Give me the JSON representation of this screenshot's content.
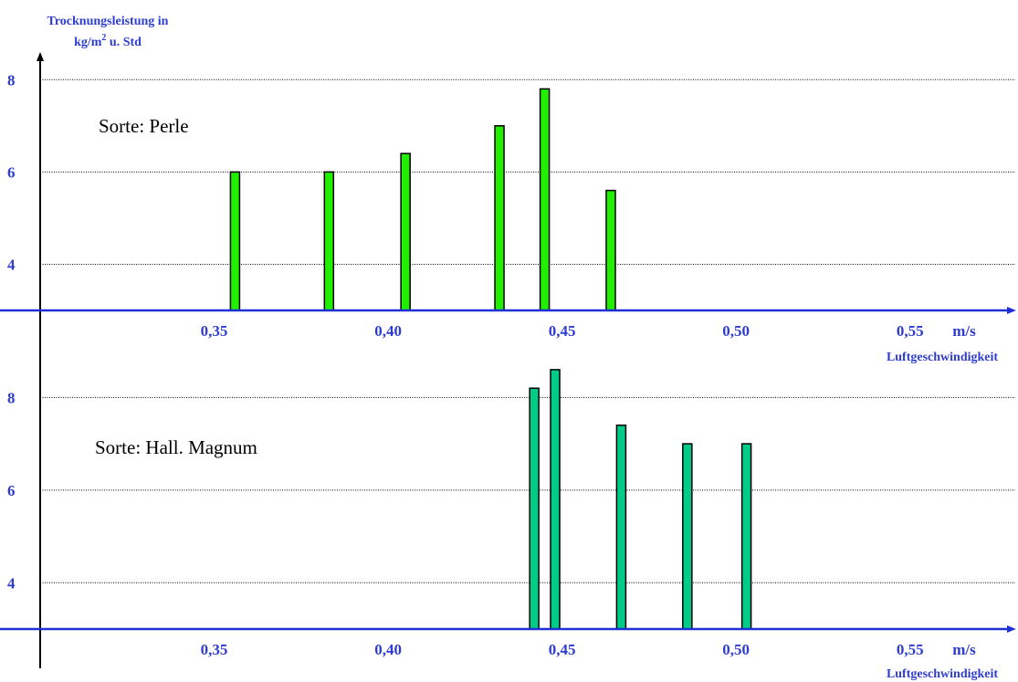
{
  "chart_data": {
    "type": "bar",
    "title_line1": "Trocknungsleistung in",
    "title_line2_pre": "kg/m",
    "title_line2_sup": "2",
    "title_line2_post": " u. Std",
    "colors": {
      "axis": "#1f30d6",
      "label": "#2e3cd0",
      "panel1_bar": "#22ee00",
      "panel2_bar": "#00cc88"
    },
    "panels": [
      {
        "label": "Sorte: Perle",
        "x_ticks": [
          "0,35",
          "0,40",
          "0,45",
          "0,50",
          "0,55"
        ],
        "x_tick_values": [
          0.35,
          0.4,
          0.45,
          0.5,
          0.55
        ],
        "x_unit": "m/s",
        "xlabel": "Luftgeschwindigkeit",
        "y_ticks": [
          "4",
          "6",
          "8"
        ],
        "y_tick_values": [
          4,
          6,
          8
        ],
        "ylim": [
          3,
          8.5
        ],
        "xlim": [
          0.3,
          0.575
        ],
        "points": [
          {
            "x": 0.356,
            "y": 6.0
          },
          {
            "x": 0.383,
            "y": 6.0
          },
          {
            "x": 0.405,
            "y": 6.4
          },
          {
            "x": 0.432,
            "y": 7.0
          },
          {
            "x": 0.445,
            "y": 7.8
          },
          {
            "x": 0.464,
            "y": 5.6
          }
        ]
      },
      {
        "label": "Sorte: Hall. Magnum",
        "x_ticks": [
          "0,35",
          "0,40",
          "0,45",
          "0,50",
          "0,55"
        ],
        "x_tick_values": [
          0.35,
          0.4,
          0.45,
          0.5,
          0.55
        ],
        "x_unit": "m/s",
        "xlabel": "Luftgeschwindigkeit",
        "y_ticks": [
          "4",
          "6",
          "8"
        ],
        "y_tick_values": [
          4,
          6,
          8
        ],
        "ylim": [
          3,
          8.5
        ],
        "xlim": [
          0.3,
          0.575
        ],
        "points": [
          {
            "x": 0.442,
            "y": 8.2
          },
          {
            "x": 0.448,
            "y": 8.6
          },
          {
            "x": 0.467,
            "y": 7.4
          },
          {
            "x": 0.486,
            "y": 7.0
          },
          {
            "x": 0.503,
            "y": 7.0
          }
        ]
      }
    ]
  }
}
